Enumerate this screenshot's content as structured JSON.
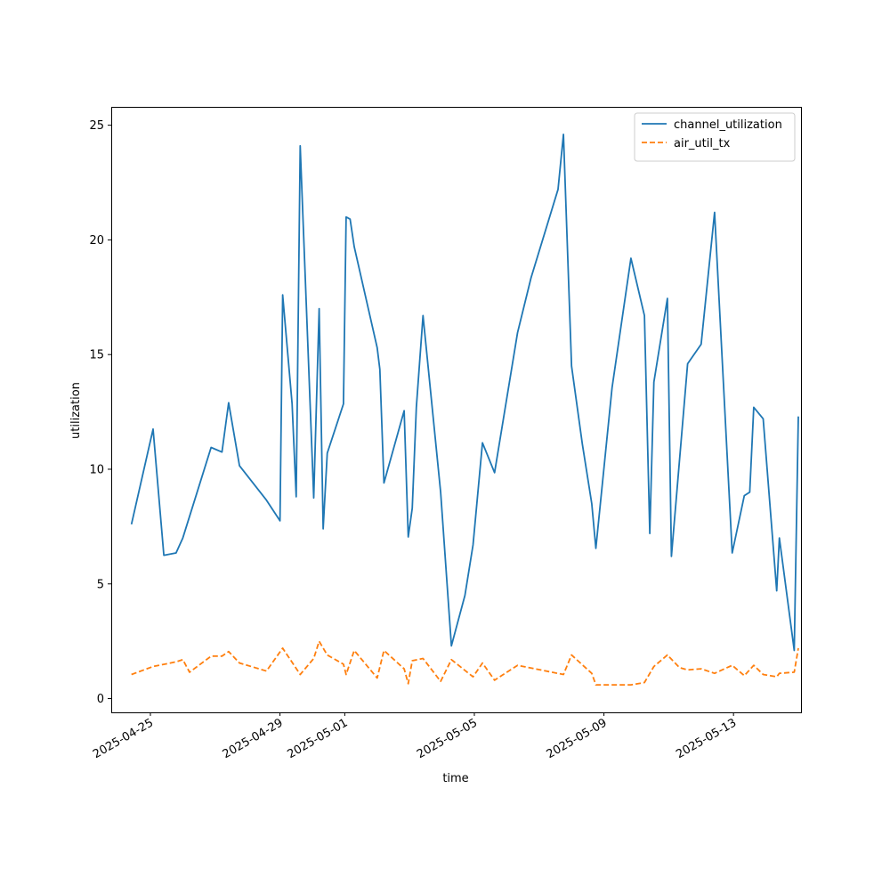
{
  "chart_data": {
    "type": "line",
    "title": "",
    "xlabel": "time",
    "ylabel": "utilization",
    "grid": false,
    "legend_placement": "top-right",
    "xlim": [
      "2025-04-23T19:00",
      "2025-05-15T02:00"
    ],
    "ylim": [
      -0.6,
      25.8
    ],
    "x_ticks": [
      "2025-04-25",
      "2025-04-29",
      "2025-05-01",
      "2025-05-05",
      "2025-05-09",
      "2025-05-13"
    ],
    "y_ticks": [
      0,
      5,
      10,
      15,
      20,
      25
    ],
    "series": [
      {
        "name": "channel_utilization",
        "color": "#1f77b4",
        "style": "solid",
        "points": [
          [
            "2025-04-24T10:00",
            7.6
          ],
          [
            "2025-04-25T02:00",
            11.75
          ],
          [
            "2025-04-25T10:00",
            6.25
          ],
          [
            "2025-04-25T19:00",
            6.35
          ],
          [
            "2025-04-26T00:00",
            7.0
          ],
          [
            "2025-04-26T21:00",
            10.95
          ],
          [
            "2025-04-27T05:00",
            10.75
          ],
          [
            "2025-04-27T10:00",
            12.9
          ],
          [
            "2025-04-27T18:00",
            10.15
          ],
          [
            "2025-04-28T14:00",
            8.65
          ],
          [
            "2025-04-29T00:00",
            7.75
          ],
          [
            "2025-04-29T02:00",
            17.6
          ],
          [
            "2025-04-29T09:00",
            12.85
          ],
          [
            "2025-04-29T12:00",
            8.8
          ],
          [
            "2025-04-29T15:00",
            24.1
          ],
          [
            "2025-04-30T01:00",
            8.75
          ],
          [
            "2025-04-30T05:00",
            17.0
          ],
          [
            "2025-04-30T08:00",
            7.4
          ],
          [
            "2025-04-30T11:00",
            10.7
          ],
          [
            "2025-04-30T23:00",
            12.85
          ],
          [
            "2025-05-01T01:00",
            21.0
          ],
          [
            "2025-05-01T04:00",
            20.9
          ],
          [
            "2025-05-01T07:00",
            19.7
          ],
          [
            "2025-05-02T00:00",
            15.3
          ],
          [
            "2025-05-02T02:00",
            14.35
          ],
          [
            "2025-05-02T05:00",
            9.4
          ],
          [
            "2025-05-02T20:00",
            12.55
          ],
          [
            "2025-05-02T23:00",
            7.05
          ],
          [
            "2025-05-03T02:00",
            8.3
          ],
          [
            "2025-05-03T05:00",
            12.7
          ],
          [
            "2025-05-03T10:00",
            16.7
          ],
          [
            "2025-05-03T23:00",
            9.0
          ],
          [
            "2025-05-04T07:00",
            2.3
          ],
          [
            "2025-05-04T17:00",
            4.5
          ],
          [
            "2025-05-04T23:00",
            6.7
          ],
          [
            "2025-05-05T06:00",
            11.15
          ],
          [
            "2025-05-05T15:00",
            9.85
          ],
          [
            "2025-05-06T08:00",
            15.95
          ],
          [
            "2025-05-06T18:00",
            18.35
          ],
          [
            "2025-05-07T14:00",
            22.2
          ],
          [
            "2025-05-07T18:00",
            24.6
          ],
          [
            "2025-05-08T00:00",
            14.5
          ],
          [
            "2025-05-08T08:00",
            11.1
          ],
          [
            "2025-05-08T15:00",
            8.5
          ],
          [
            "2025-05-08T18:00",
            6.55
          ],
          [
            "2025-05-09T06:00",
            13.55
          ],
          [
            "2025-05-09T20:00",
            19.2
          ],
          [
            "2025-05-10T06:00",
            16.7
          ],
          [
            "2025-05-10T10:00",
            7.2
          ],
          [
            "2025-05-10T13:00",
            13.8
          ],
          [
            "2025-05-10T23:00",
            17.45
          ],
          [
            "2025-05-11T02:00",
            6.2
          ],
          [
            "2025-05-11T08:00",
            10.4
          ],
          [
            "2025-05-11T14:00",
            14.6
          ],
          [
            "2025-05-12T00:00",
            15.45
          ],
          [
            "2025-05-12T10:00",
            21.2
          ],
          [
            "2025-05-12T23:00",
            6.35
          ],
          [
            "2025-05-13T08:00",
            8.85
          ],
          [
            "2025-05-13T12:00",
            9.0
          ],
          [
            "2025-05-13T15:00",
            12.7
          ],
          [
            "2025-05-13T22:00",
            12.2
          ],
          [
            "2025-05-14T10:00",
            7.0
          ],
          [
            "2025-05-14T21:00",
            2.1
          ],
          [
            "2025-05-15T00:00",
            12.3
          ],
          [
            "2025-05-14T08:00",
            4.7
          ]
        ]
      },
      {
        "name": "air_util_tx",
        "color": "#ff7f0e",
        "style": "dashed",
        "points": [
          [
            "2025-04-24T10:00",
            1.05
          ],
          [
            "2025-04-25T02:00",
            1.4
          ],
          [
            "2025-04-25T19:00",
            1.6
          ],
          [
            "2025-04-26T00:00",
            1.7
          ],
          [
            "2025-04-26T05:00",
            1.15
          ],
          [
            "2025-04-26T21:00",
            1.85
          ],
          [
            "2025-04-27T05:00",
            1.85
          ],
          [
            "2025-04-27T10:00",
            2.05
          ],
          [
            "2025-04-27T18:00",
            1.55
          ],
          [
            "2025-04-28T14:00",
            1.2
          ],
          [
            "2025-04-29T02:00",
            2.2
          ],
          [
            "2025-04-29T15:00",
            1.05
          ],
          [
            "2025-04-30T01:00",
            1.75
          ],
          [
            "2025-04-30T05:00",
            2.5
          ],
          [
            "2025-04-30T11:00",
            1.9
          ],
          [
            "2025-04-30T23:00",
            1.5
          ],
          [
            "2025-05-01T01:00",
            1.05
          ],
          [
            "2025-05-01T07:00",
            2.1
          ],
          [
            "2025-05-02T00:00",
            0.9
          ],
          [
            "2025-05-02T05:00",
            2.1
          ],
          [
            "2025-05-02T20:00",
            1.3
          ],
          [
            "2025-05-02T23:00",
            0.65
          ],
          [
            "2025-05-03T02:00",
            1.65
          ],
          [
            "2025-05-03T10:00",
            1.75
          ],
          [
            "2025-05-03T23:00",
            0.75
          ],
          [
            "2025-05-04T07:00",
            1.7
          ],
          [
            "2025-05-04T23:00",
            0.95
          ],
          [
            "2025-05-05T06:00",
            1.55
          ],
          [
            "2025-05-05T15:00",
            0.8
          ],
          [
            "2025-05-06T08:00",
            1.45
          ],
          [
            "2025-05-07T18:00",
            1.05
          ],
          [
            "2025-05-08T00:00",
            1.9
          ],
          [
            "2025-05-08T15:00",
            1.1
          ],
          [
            "2025-05-08T18:00",
            0.6
          ],
          [
            "2025-05-09T06:00",
            0.6
          ],
          [
            "2025-05-09T20:00",
            0.6
          ],
          [
            "2025-05-10T06:00",
            0.7
          ],
          [
            "2025-05-10T13:00",
            1.4
          ],
          [
            "2025-05-10T23:00",
            1.9
          ],
          [
            "2025-05-11T08:00",
            1.35
          ],
          [
            "2025-05-11T14:00",
            1.25
          ],
          [
            "2025-05-12T00:00",
            1.3
          ],
          [
            "2025-05-12T10:00",
            1.1
          ],
          [
            "2025-05-12T23:00",
            1.45
          ],
          [
            "2025-05-13T08:00",
            1.0
          ],
          [
            "2025-05-13T15:00",
            1.45
          ],
          [
            "2025-05-13T22:00",
            1.05
          ],
          [
            "2025-05-14T10:00",
            1.1
          ],
          [
            "2025-05-14T21:00",
            1.15
          ],
          [
            "2025-05-15T00:00",
            2.2
          ],
          [
            "2025-05-14T08:00",
            0.95
          ]
        ]
      }
    ]
  }
}
